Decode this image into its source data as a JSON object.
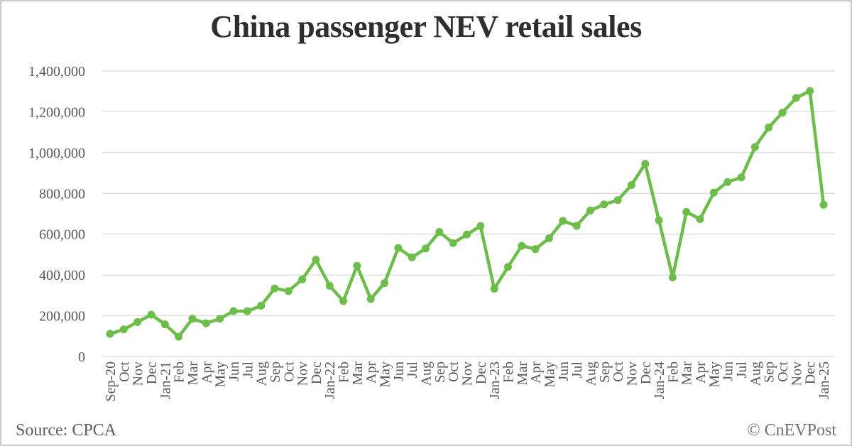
{
  "title": "China passenger NEV retail sales",
  "footer": {
    "source": "Source: CPCA",
    "credit": "© CnEVPost"
  },
  "colors": {
    "background": "#ffffff",
    "frame_border": "#c9c9c9",
    "title_text": "#2e2e2e",
    "axis_text": "#595959",
    "gridline": "#d9d9d9",
    "line": "#6cbd4a",
    "footer_text": "#5f5f5f"
  },
  "chart_data": {
    "type": "line",
    "title": "China passenger NEV retail sales",
    "xlabel": "",
    "ylabel": "",
    "legend": "none",
    "grid": "horizontal-only",
    "marker": "circle",
    "x_tick_rotation": -90,
    "ylim": [
      0,
      1400000
    ],
    "yticks": [
      {
        "value": 0,
        "label": "0"
      },
      {
        "value": 200000,
        "label": "200,000"
      },
      {
        "value": 400000,
        "label": "400,000"
      },
      {
        "value": 600000,
        "label": "600,000"
      },
      {
        "value": 800000,
        "label": "800,000"
      },
      {
        "value": 1000000,
        "label": "1,000,000"
      },
      {
        "value": 1200000,
        "label": "1,200,000"
      },
      {
        "value": 1400000,
        "label": "1,400,000"
      }
    ],
    "categories": [
      "Sep-20",
      "Oct",
      "Nov",
      "Dec",
      "Jan-21",
      "Feb",
      "Mar",
      "Apr",
      "May",
      "Jun",
      "Jul",
      "Aug",
      "Sep",
      "Oct",
      "Nov",
      "Dec",
      "Jan-22",
      "Feb",
      "Mar",
      "Apr",
      "May",
      "Jun",
      "Jul",
      "Aug",
      "Sep",
      "Oct",
      "Nov",
      "Dec",
      "Jan-23",
      "Feb",
      "Mar",
      "Apr",
      "May",
      "Jun",
      "Jul",
      "Aug",
      "Sep",
      "Oct",
      "Nov",
      "Dec",
      "Jan-24",
      "Feb",
      "Mar",
      "Apr",
      "May",
      "Jun",
      "Jul",
      "Aug",
      "Sep",
      "Oct",
      "Nov",
      "Dec",
      "Jan-25"
    ],
    "series": [
      {
        "name": "China passenger NEV retail sales (units)",
        "values": [
          111000,
          133000,
          169000,
          205000,
          158000,
          97000,
          185000,
          163000,
          185000,
          223000,
          222000,
          249000,
          334000,
          321000,
          378000,
          475000,
          347000,
          272000,
          445000,
          282000,
          360000,
          532000,
          486000,
          530000,
          611000,
          556000,
          598000,
          640000,
          332000,
          439000,
          543000,
          527000,
          580000,
          665000,
          641000,
          716000,
          746000,
          767000,
          841000,
          945000,
          668000,
          388000,
          709000,
          674000,
          804000,
          856000,
          878000,
          1027000,
          1123000,
          1196000,
          1268000,
          1302000,
          744000
        ]
      }
    ]
  }
}
